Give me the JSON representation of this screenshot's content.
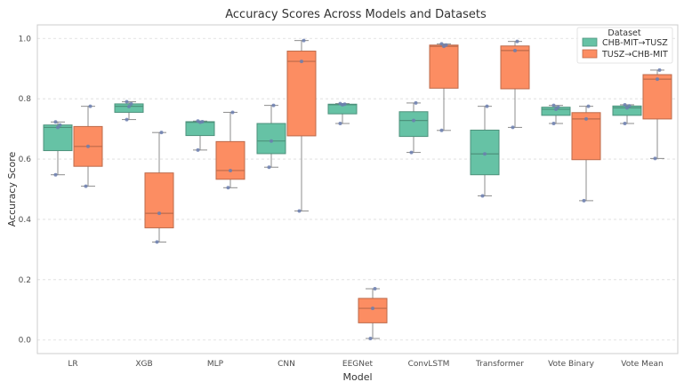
{
  "chart_data": {
    "type": "box",
    "title": "Accuracy Scores Across Models and Datasets",
    "xlabel": "Model",
    "ylabel": "Accuracy Score",
    "ylim": [
      -0.045,
      1.045
    ],
    "yticks": [
      0.0,
      0.2,
      0.4,
      0.6,
      0.8,
      1.0
    ],
    "ytick_labels": [
      "0.0",
      "0.2",
      "0.4",
      "0.6",
      "0.8",
      "1.0"
    ],
    "grid": true,
    "legend_title": "Dataset",
    "legend_position": "top-right",
    "categories": [
      "LR",
      "XGB",
      "MLP",
      "CNN",
      "EEGNet",
      "ConvLSTM",
      "Transformer",
      "Vote Binary",
      "Vote Mean"
    ],
    "series": [
      {
        "name": "CHB-MIT→TUSZ",
        "color": "#66c2a5",
        "boxes": [
          {
            "min": 0.548,
            "q1": 0.628,
            "median": 0.705,
            "q3": 0.713,
            "max": 0.723,
            "points": [
              0.548,
              0.705,
              0.713,
              0.723
            ]
          },
          {
            "min": 0.731,
            "q1": 0.755,
            "median": 0.775,
            "q3": 0.783,
            "max": 0.79,
            "points": [
              0.731,
              0.774,
              0.783,
              0.79
            ]
          },
          {
            "min": 0.63,
            "q1": 0.678,
            "median": 0.722,
            "q3": 0.724,
            "max": 0.726,
            "points": [
              0.63,
              0.722,
              0.724,
              0.726
            ]
          },
          {
            "min": 0.573,
            "q1": 0.618,
            "median": 0.66,
            "q3": 0.718,
            "max": 0.778,
            "points": [
              0.573,
              0.66,
              0.778
            ]
          },
          {
            "min": 0.718,
            "q1": 0.75,
            "median": 0.78,
            "q3": 0.782,
            "max": 0.784,
            "points": [
              0.718,
              0.78,
              0.782,
              0.784
            ]
          },
          {
            "min": 0.622,
            "q1": 0.675,
            "median": 0.728,
            "q3": 0.757,
            "max": 0.786,
            "points": [
              0.622,
              0.728,
              0.786
            ]
          },
          {
            "min": 0.478,
            "q1": 0.548,
            "median": 0.617,
            "q3": 0.696,
            "max": 0.775,
            "points": [
              0.478,
              0.617,
              0.775
            ]
          },
          {
            "min": 0.718,
            "q1": 0.745,
            "median": 0.765,
            "q3": 0.772,
            "max": 0.778,
            "points": [
              0.718,
              0.765,
              0.772,
              0.778
            ]
          },
          {
            "min": 0.718,
            "q1": 0.745,
            "median": 0.77,
            "q3": 0.776,
            "max": 0.78,
            "points": [
              0.718,
              0.77,
              0.776,
              0.78
            ]
          }
        ]
      },
      {
        "name": "TUSZ→CHB-MIT",
        "color": "#fc8d62",
        "boxes": [
          {
            "min": 0.51,
            "q1": 0.576,
            "median": 0.642,
            "q3": 0.708,
            "max": 0.775,
            "points": [
              0.51,
              0.642,
              0.775
            ]
          },
          {
            "min": 0.325,
            "q1": 0.372,
            "median": 0.42,
            "q3": 0.554,
            "max": 0.688,
            "points": [
              0.325,
              0.42,
              0.688
            ]
          },
          {
            "min": 0.505,
            "q1": 0.533,
            "median": 0.562,
            "q3": 0.658,
            "max": 0.755,
            "points": [
              0.505,
              0.562,
              0.755
            ]
          },
          {
            "min": 0.428,
            "q1": 0.677,
            "median": 0.924,
            "q3": 0.958,
            "max": 0.993,
            "points": [
              0.428,
              0.924,
              0.993
            ]
          },
          {
            "min": 0.005,
            "q1": 0.057,
            "median": 0.105,
            "q3": 0.138,
            "max": 0.17,
            "points": [
              0.005,
              0.105,
              0.17
            ]
          },
          {
            "min": 0.695,
            "q1": 0.835,
            "median": 0.974,
            "q3": 0.978,
            "max": 0.982,
            "points": [
              0.695,
              0.974,
              0.978,
              0.982
            ]
          },
          {
            "min": 0.705,
            "q1": 0.833,
            "median": 0.96,
            "q3": 0.975,
            "max": 0.99,
            "points": [
              0.705,
              0.96,
              0.99
            ]
          },
          {
            "min": 0.462,
            "q1": 0.598,
            "median": 0.733,
            "q3": 0.754,
            "max": 0.775,
            "points": [
              0.462,
              0.733,
              0.775
            ]
          },
          {
            "min": 0.602,
            "q1": 0.733,
            "median": 0.865,
            "q3": 0.88,
            "max": 0.895,
            "points": [
              0.602,
              0.865,
              0.895
            ]
          }
        ]
      }
    ]
  }
}
